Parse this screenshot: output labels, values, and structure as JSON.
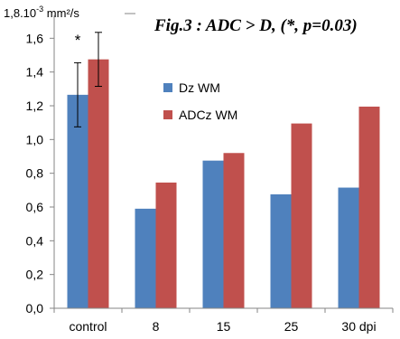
{
  "chart_data": {
    "type": "bar",
    "title": "Fig.3 : ADC > D, (*, p=0.03)",
    "ylabel_unit": {
      "prefix": "1,8.10",
      "exp": "-3",
      "suffix": " mm²/s"
    },
    "xlabel": "",
    "categories": [
      "control",
      "8",
      "15",
      "25",
      "30 dpi"
    ],
    "series": [
      {
        "name": "Dz WM",
        "color": "#4f81bd",
        "values": [
          1.265,
          0.59,
          0.875,
          0.675,
          0.715
        ]
      },
      {
        "name": "ADCz WM",
        "color": "#c0504d",
        "values": [
          1.475,
          0.745,
          0.92,
          1.095,
          1.195
        ]
      }
    ],
    "error_bars": [
      {
        "category": "control",
        "series": "Dz WM",
        "low": 1.075,
        "high": 1.455
      },
      {
        "category": "control",
        "series": "ADCz WM",
        "low": 1.315,
        "high": 1.635
      }
    ],
    "annotation": {
      "category": "control",
      "text": "*"
    },
    "ylim": [
      0,
      1.8
    ],
    "y_ticks": [
      "0,0",
      "0,2",
      "0,4",
      "0,6",
      "0,8",
      "1,0",
      "1,2",
      "1,4",
      "1,6"
    ],
    "grid": false,
    "legend_position": "center"
  }
}
